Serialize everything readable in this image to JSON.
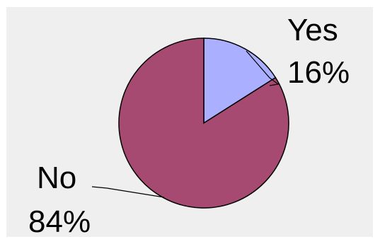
{
  "chart_data": {
    "type": "pie",
    "title": "",
    "slices": [
      {
        "label": "Yes",
        "value": 16,
        "value_label": "16%",
        "color": "#aab0ff"
      },
      {
        "label": "No",
        "value": 84,
        "value_label": "84%",
        "color": "#a64a72"
      }
    ],
    "start_angle_deg": 0,
    "direction": "clockwise",
    "background_color": "#efefef",
    "outline_color": "#000000",
    "legend": "none"
  }
}
